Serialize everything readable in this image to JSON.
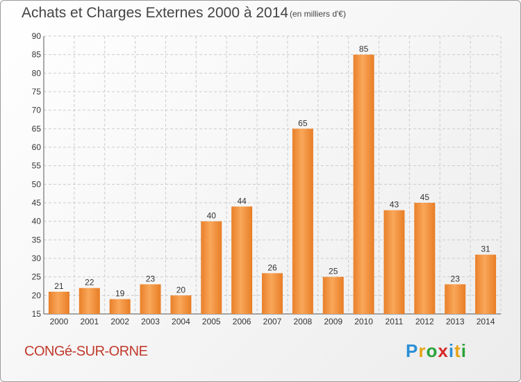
{
  "chart_data": {
    "type": "bar",
    "title": "Achats et Charges Externes 2000 à 2014",
    "subtitle": "(en milliers d'€)",
    "categories": [
      "2000",
      "2001",
      "2002",
      "2003",
      "2004",
      "2005",
      "2006",
      "2007",
      "2008",
      "2009",
      "2010",
      "2011",
      "2012",
      "2013",
      "2014"
    ],
    "values": [
      21,
      22,
      19,
      23,
      20,
      40,
      44,
      26,
      65,
      25,
      85,
      43,
      45,
      23,
      31
    ],
    "ylim": [
      15,
      90
    ],
    "yticks": [
      15,
      20,
      25,
      30,
      35,
      40,
      45,
      50,
      55,
      60,
      65,
      70,
      75,
      80,
      85,
      90
    ],
    "grid": true,
    "bar_color": "#f28a2e",
    "grid_color": "#cccccc"
  },
  "footer": {
    "place": "CONGé-SUR-ORNE",
    "logo_letters": [
      "P",
      "r",
      "o",
      "x",
      "i",
      "t",
      "i"
    ],
    "logo_colors": [
      "#2a8fd6",
      "#e8a317",
      "#2aa33a",
      "#d62a2a",
      "#2a8fd6",
      "#e8a317",
      "#2aa33a"
    ]
  }
}
